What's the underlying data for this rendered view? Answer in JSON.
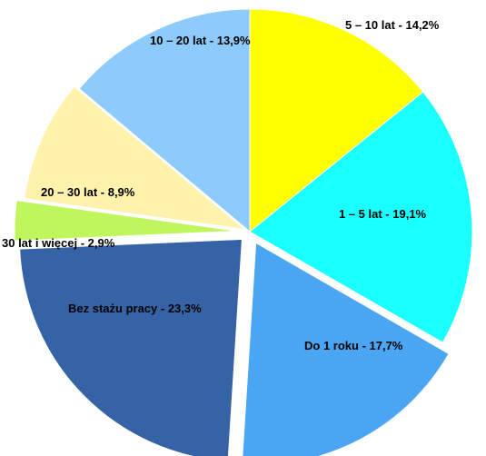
{
  "chart_data": {
    "type": "pie",
    "values": [
      14.2,
      19.1,
      17.7,
      23.3,
      2.9,
      8.9,
      13.9
    ],
    "value_labels": [
      "5 – 10 lat - 14,2%",
      "1 – 5 lat - 19,1%",
      "Do 1 roku - 17,7%",
      "Bez stażu pracy - 23,3%",
      "30 lat i więcej - 2,9%",
      "20 – 30 lat - 8,9%",
      "10 – 20 lat - 13,9%"
    ],
    "colors": [
      "#ffff00",
      "#1affff",
      "#4aa6f2",
      "#3563a6",
      "#bff65c",
      "#fff2ad",
      "#8ccbfa"
    ]
  }
}
